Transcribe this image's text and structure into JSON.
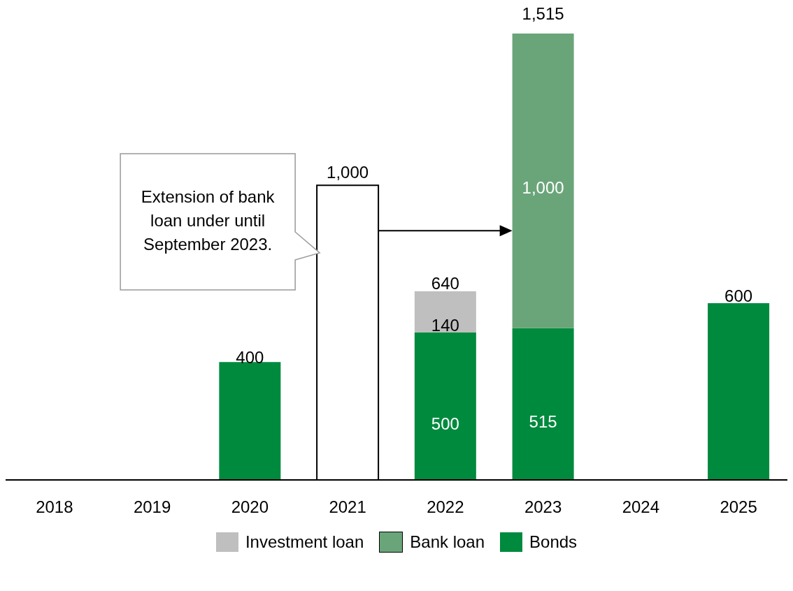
{
  "chart_data": {
    "type": "bar",
    "stacked": true,
    "categories": [
      "2018",
      "2019",
      "2020",
      "2021",
      "2022",
      "2023",
      "2024",
      "2025"
    ],
    "series": [
      {
        "name": "Bonds",
        "color": "#008a3e",
        "values": [
          null,
          null,
          400,
          null,
          500,
          515,
          null,
          600
        ],
        "value_labels": [
          null,
          null,
          null,
          null,
          "500",
          "515",
          null,
          null
        ]
      },
      {
        "name": "Bank loan",
        "color": "#6aa57a",
        "values": [
          null,
          null,
          null,
          null,
          null,
          1000,
          null,
          null
        ],
        "value_labels": [
          null,
          null,
          null,
          null,
          null,
          "1,000",
          null,
          null
        ]
      },
      {
        "name": "Investment loan",
        "color": "#bfbfbf",
        "values": [
          null,
          null,
          null,
          null,
          140,
          null,
          null,
          null
        ],
        "value_labels": [
          null,
          null,
          null,
          null,
          "140",
          null,
          null,
          null
        ]
      },
      {
        "color": "#ffffff",
        "values": [
          null,
          null,
          null,
          1000,
          null,
          null,
          null,
          null
        ]
      }
    ],
    "totals": [
      null,
      null,
      "400",
      "1,000",
      "640",
      "1,515",
      null,
      "600"
    ],
    "annotations": [
      "Extension of bank loan under until September 2023."
    ],
    "legend": "bottom",
    "grid": false
  }
}
